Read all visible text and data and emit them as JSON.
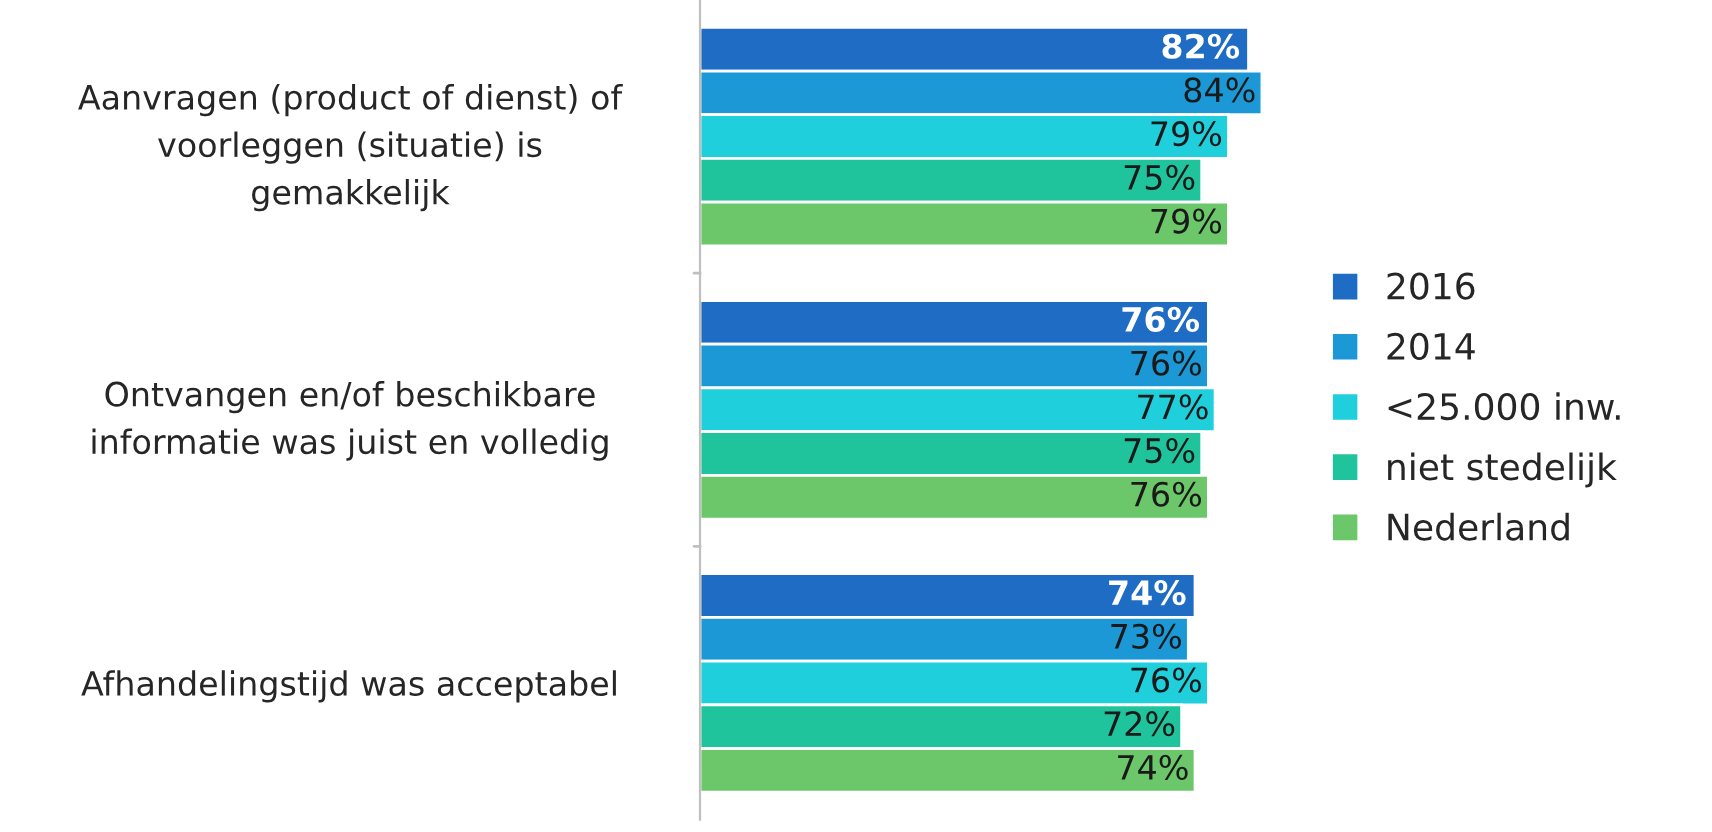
{
  "chart_data": {
    "type": "bar",
    "orientation": "horizontal",
    "categories": [
      "Aanvragen (product of dienst) of\nvoorleggen (situatie) is\ngemakkelijk",
      "Ontvangen en/of beschikbare\ninformatie was juist en volledig",
      "Afhandelingstijd was acceptabel"
    ],
    "series": [
      {
        "name": "2016",
        "color": "#1f6cc4",
        "values": [
          82,
          76,
          74
        ],
        "value_labels": [
          "82%",
          "76%",
          "74%"
        ]
      },
      {
        "name": "2014",
        "color": "#1b98d5",
        "values": [
          84,
          76,
          73
        ],
        "value_labels": [
          "84%",
          "76%",
          "73%"
        ]
      },
      {
        "name": "<25.000 inw.",
        "color": "#1fcfdc",
        "values": [
          79,
          77,
          76
        ],
        "value_labels": [
          "79%",
          "77%",
          "76%"
        ]
      },
      {
        "name": "niet stedelijk",
        "color": "#20c49c",
        "values": [
          75,
          75,
          72
        ],
        "value_labels": [
          "75%",
          "75%",
          "72%"
        ]
      },
      {
        "name": "Nederland",
        "color": "#6cc76a",
        "values": [
          79,
          76,
          74
        ],
        "value_labels": [
          "79%",
          "76%",
          "74%"
        ]
      }
    ],
    "tick_labels": "y",
    "grid": false,
    "legend": "right"
  }
}
